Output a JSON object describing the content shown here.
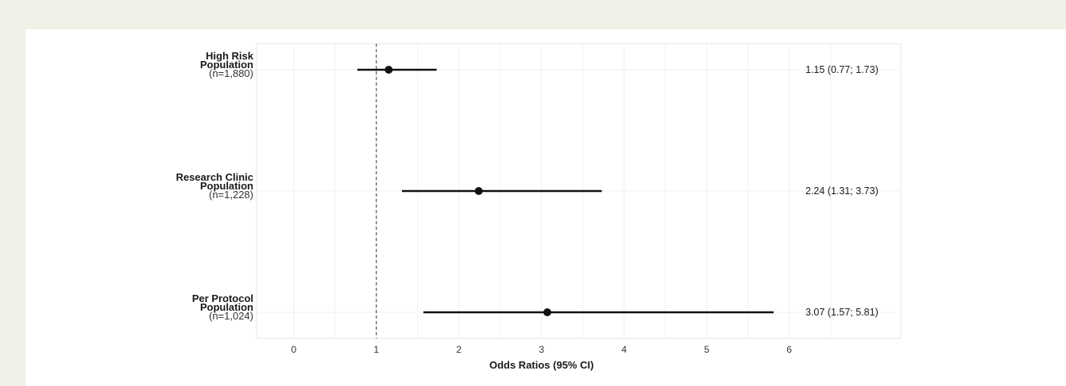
{
  "chart_data": {
    "type": "forest",
    "xlabel": "Odds Ratios (95% CI)",
    "xticks": [
      0,
      1,
      2,
      3,
      4,
      5,
      6
    ],
    "xlim": [
      -0.45,
      7.35
    ],
    "reference_line": 1,
    "grid": true,
    "rows": [
      {
        "name_lines": [
          "High Risk",
          "Population"
        ],
        "n_label": "(n=1,880)",
        "or": 1.15,
        "lower": 0.77,
        "upper": 1.73,
        "value_label": "1.15 (0.77; 1.73)"
      },
      {
        "name_lines": [
          "Research Clinic",
          "Population"
        ],
        "n_label": "(n=1,228)",
        "or": 2.24,
        "lower": 1.31,
        "upper": 3.73,
        "value_label": "2.24 (1.31; 3.73)"
      },
      {
        "name_lines": [
          "Per Protocol",
          "Population"
        ],
        "n_label": "(n=1,024)",
        "or": 3.07,
        "lower": 1.57,
        "upper": 5.81,
        "value_label": "3.07 (1.57; 5.81)"
      }
    ]
  },
  "colors": {
    "page_background": "#f1f0e6",
    "panel_border": "#e6e6e6",
    "grid": "#f0f0f0",
    "ink": "#111111"
  }
}
